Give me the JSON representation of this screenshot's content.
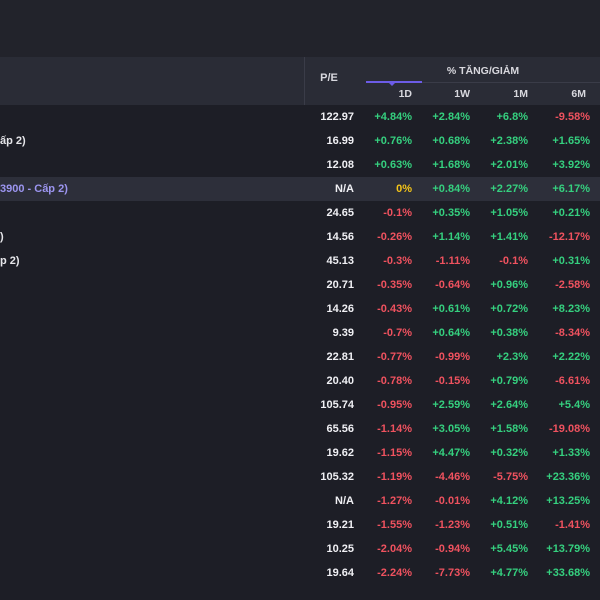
{
  "header": {
    "pe_label": "P/E",
    "group_label": "% TĂNG/GIẢM",
    "periods": [
      "1D",
      "1W",
      "1M",
      "6M"
    ]
  },
  "colors": {
    "up": "#35d07f",
    "down": "#f0525f",
    "flat": "#f5c518",
    "accent": "#9c95f0"
  },
  "rows": [
    {
      "name": "",
      "pe": "122.97",
      "d1": "+4.84%",
      "w1": "+2.84%",
      "m1": "+6.8%",
      "m6": "-9.58%"
    },
    {
      "name": "ấp 2)",
      "pe": "16.99",
      "d1": "+0.76%",
      "w1": "+0.68%",
      "m1": "+2.38%",
      "m6": "+1.65%"
    },
    {
      "name": "",
      "pe": "12.08",
      "d1": "+0.63%",
      "w1": "+1.68%",
      "m1": "+2.01%",
      "m6": "+3.92%"
    },
    {
      "name": "3900 - Cấp 2)",
      "pe": "N/A",
      "d1": "0%",
      "w1": "+0.84%",
      "m1": "+2.27%",
      "m6": "+6.17%"
    },
    {
      "name": "",
      "pe": "24.65",
      "d1": "-0.1%",
      "w1": "+0.35%",
      "m1": "+1.05%",
      "m6": "+0.21%"
    },
    {
      "name": ")",
      "pe": "14.56",
      "d1": "-0.26%",
      "w1": "+1.14%",
      "m1": "+1.41%",
      "m6": "-12.17%"
    },
    {
      "name": "p 2)",
      "pe": "45.13",
      "d1": "-0.3%",
      "w1": "-1.11%",
      "m1": "-0.1%",
      "m6": "+0.31%"
    },
    {
      "name": "",
      "pe": "20.71",
      "d1": "-0.35%",
      "w1": "-0.64%",
      "m1": "+0.96%",
      "m6": "-2.58%"
    },
    {
      "name": "",
      "pe": "14.26",
      "d1": "-0.43%",
      "w1": "+0.61%",
      "m1": "+0.72%",
      "m6": "+8.23%"
    },
    {
      "name": "",
      "pe": "9.39",
      "d1": "-0.7%",
      "w1": "+0.64%",
      "m1": "+0.38%",
      "m6": "-8.34%"
    },
    {
      "name": "",
      "pe": "22.81",
      "d1": "-0.77%",
      "w1": "-0.99%",
      "m1": "+2.3%",
      "m6": "+2.22%"
    },
    {
      "name": "",
      "pe": "20.40",
      "d1": "-0.78%",
      "w1": "-0.15%",
      "m1": "+0.79%",
      "m6": "-6.61%"
    },
    {
      "name": "",
      "pe": "105.74",
      "d1": "-0.95%",
      "w1": "+2.59%",
      "m1": "+2.64%",
      "m6": "+5.4%"
    },
    {
      "name": "",
      "pe": "65.56",
      "d1": "-1.14%",
      "w1": "+3.05%",
      "m1": "+1.58%",
      "m6": "-19.08%"
    },
    {
      "name": "",
      "pe": "19.62",
      "d1": "-1.15%",
      "w1": "+4.47%",
      "m1": "+0.32%",
      "m6": "+1.33%"
    },
    {
      "name": "",
      "pe": "105.32",
      "d1": "-1.19%",
      "w1": "-4.46%",
      "m1": "-5.75%",
      "m6": "+23.36%"
    },
    {
      "name": "",
      "pe": "N/A",
      "d1": "-1.27%",
      "w1": "-0.01%",
      "m1": "+4.12%",
      "m6": "+13.25%"
    },
    {
      "name": "",
      "pe": "19.21",
      "d1": "-1.55%",
      "w1": "-1.23%",
      "m1": "+0.51%",
      "m6": "-1.41%"
    },
    {
      "name": "",
      "pe": "10.25",
      "d1": "-2.04%",
      "w1": "-0.94%",
      "m1": "+5.45%",
      "m6": "+13.79%"
    },
    {
      "name": "",
      "pe": "19.64",
      "d1": "-2.24%",
      "w1": "-7.73%",
      "m1": "+4.77%",
      "m6": "+33.68%"
    }
  ]
}
